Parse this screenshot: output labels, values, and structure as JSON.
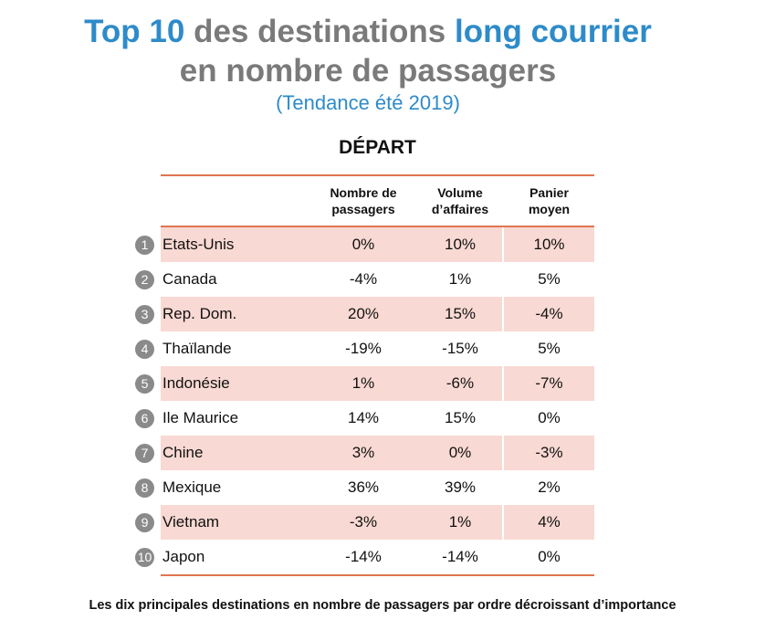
{
  "title": {
    "part1": "Top 10",
    "part2": "des destinations",
    "part3": "long courrier",
    "line2": "en nombre de passagers",
    "subtitle": "(Tendance été 2019)"
  },
  "colors": {
    "blue": "#2e8bc9",
    "grey": "#7a7a7a",
    "accent_line": "#e0764f",
    "row_tint": "#f9d9d3",
    "badge": "#8a8a8a"
  },
  "section_title": "DÉPART",
  "columns": [
    "Nombre de\npassagers",
    "Volume\nd’affaires",
    "Panier\nmoyen"
  ],
  "rows": [
    {
      "rank": "1",
      "name": "Etats-Unis",
      "passengers": "0%",
      "volume": "10%",
      "basket": "10%"
    },
    {
      "rank": "2",
      "name": "Canada",
      "passengers": "-4%",
      "volume": "1%",
      "basket": "5%"
    },
    {
      "rank": "3",
      "name": "Rep. Dom.",
      "passengers": "20%",
      "volume": "15%",
      "basket": "-4%"
    },
    {
      "rank": "4",
      "name": "Thaïlande",
      "passengers": "-19%",
      "volume": "-15%",
      "basket": "5%"
    },
    {
      "rank": "5",
      "name": "Indonésie",
      "passengers": "1%",
      "volume": "-6%",
      "basket": "-7%"
    },
    {
      "rank": "6",
      "name": "Ile Maurice",
      "passengers": "14%",
      "volume": "15%",
      "basket": "0%"
    },
    {
      "rank": "7",
      "name": "Chine",
      "passengers": "3%",
      "volume": "0%",
      "basket": "-3%"
    },
    {
      "rank": "8",
      "name": "Mexique",
      "passengers": "36%",
      "volume": "39%",
      "basket": "2%"
    },
    {
      "rank": "9",
      "name": "Vietnam",
      "passengers": "-3%",
      "volume": "1%",
      "basket": "4%"
    },
    {
      "rank": "10",
      "name": "Japon",
      "passengers": "-14%",
      "volume": "-14%",
      "basket": "0%"
    }
  ],
  "caption": "Les dix principales destinations en nombre de passagers par ordre décroissant d’importance"
}
